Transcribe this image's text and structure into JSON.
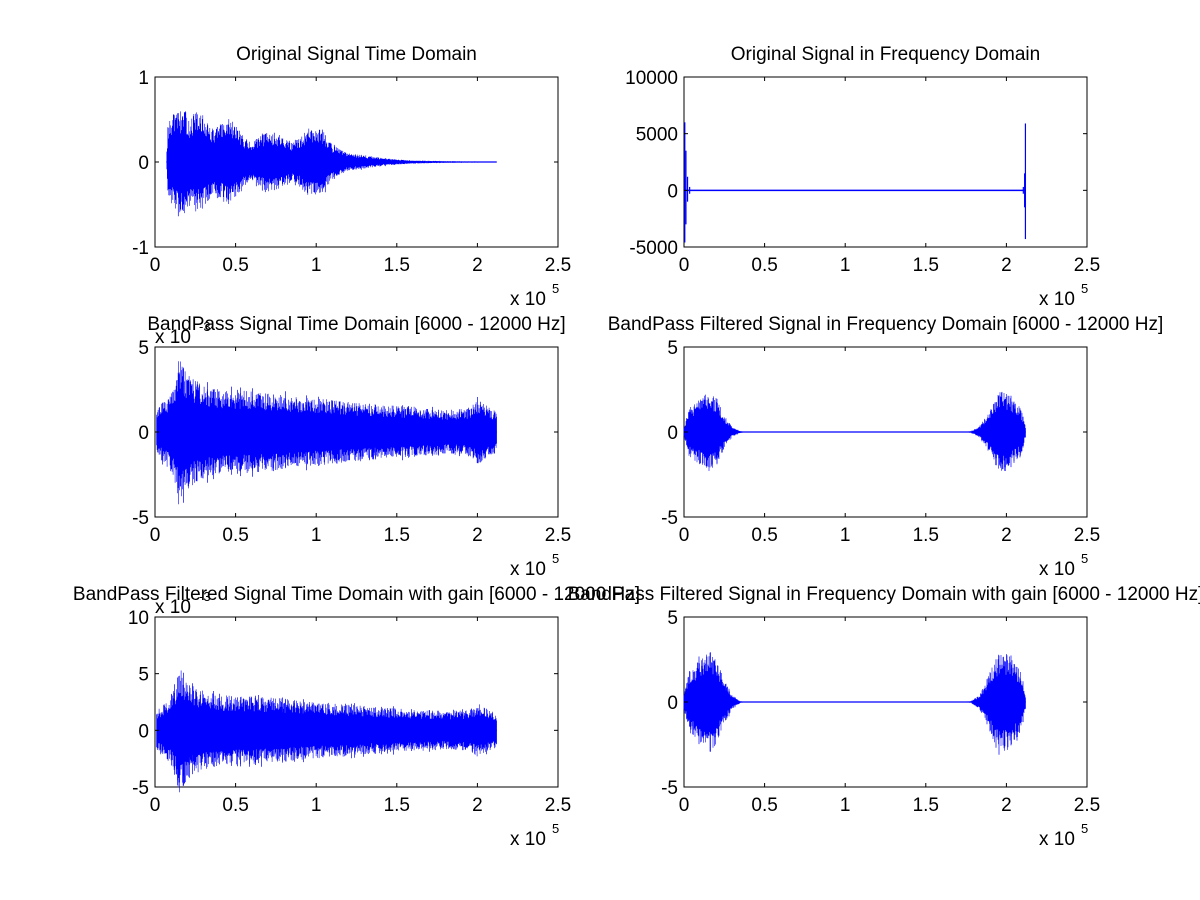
{
  "figure": {
    "background": "#ffffff",
    "line_color": "#0000ff"
  },
  "chart_data": [
    {
      "id": "p1",
      "type": "line",
      "title": "Original Signal Time Domain",
      "xlim": [
        0,
        250000
      ],
      "ylim": [
        -1,
        1
      ],
      "x_ticks": [
        "0",
        "0.5",
        "1",
        "1.5",
        "2",
        "2.5"
      ],
      "y_ticks": [
        "-1",
        "0",
        "1"
      ],
      "x_multiplier": "x 10",
      "x_multiplier_exp": "5",
      "y_multiplier": "",
      "y_multiplier_exp": "",
      "signal": {
        "kind": "envelope",
        "x_start": 7000,
        "x_end": 212000,
        "envelope": [
          [
            7000,
            0.0
          ],
          [
            8000,
            0.45
          ],
          [
            12000,
            0.58
          ],
          [
            18000,
            0.62
          ],
          [
            22000,
            0.5
          ],
          [
            25000,
            0.6
          ],
          [
            30000,
            0.55
          ],
          [
            35000,
            0.4
          ],
          [
            40000,
            0.42
          ],
          [
            45000,
            0.52
          ],
          [
            50000,
            0.45
          ],
          [
            55000,
            0.3
          ],
          [
            60000,
            0.22
          ],
          [
            65000,
            0.3
          ],
          [
            70000,
            0.36
          ],
          [
            80000,
            0.3
          ],
          [
            85000,
            0.22
          ],
          [
            90000,
            0.3
          ],
          [
            95000,
            0.4
          ],
          [
            100000,
            0.43
          ],
          [
            105000,
            0.35
          ],
          [
            110000,
            0.2
          ],
          [
            115000,
            0.15
          ],
          [
            120000,
            0.1
          ],
          [
            130000,
            0.08
          ],
          [
            140000,
            0.05
          ],
          [
            150000,
            0.03
          ],
          [
            160000,
            0.02
          ],
          [
            180000,
            0.01
          ],
          [
            212000,
            0.005
          ]
        ]
      }
    },
    {
      "id": "p2",
      "type": "line",
      "title": "Original Signal in Frequency Domain",
      "xlim": [
        0,
        250000
      ],
      "ylim": [
        -5000,
        10000
      ],
      "x_ticks": [
        "0",
        "0.5",
        "1",
        "1.5",
        "2",
        "2.5"
      ],
      "y_ticks": [
        "-5000",
        "0",
        "5000",
        "10000"
      ],
      "x_multiplier": "x 10",
      "x_multiplier_exp": "5",
      "y_multiplier": "",
      "y_multiplier_exp": "",
      "signal": {
        "kind": "spikes",
        "x_start": 0,
        "x_end": 212000,
        "spikes": [
          [
            500,
            6000,
            -4600
          ],
          [
            1200,
            3500,
            -3000
          ],
          [
            2200,
            1200,
            -1000
          ],
          [
            3500,
            300,
            -300
          ],
          [
            210500,
            300,
            -300
          ],
          [
            211300,
            1500,
            -1500
          ],
          [
            211800,
            5900,
            -4300
          ]
        ]
      }
    },
    {
      "id": "p3",
      "type": "line",
      "title": "BandPass Signal Time Domain [6000 - 12000 Hz]",
      "xlim": [
        0,
        250000
      ],
      "ylim": [
        -5,
        5
      ],
      "x_ticks": [
        "0",
        "0.5",
        "1",
        "1.5",
        "2",
        "2.5"
      ],
      "y_ticks": [
        "-5",
        "0",
        "5"
      ],
      "x_multiplier": "x 10",
      "x_multiplier_exp": "5",
      "y_multiplier": "x 10",
      "y_multiplier_exp": "-3",
      "signal": {
        "kind": "envelope",
        "x_start": 1000,
        "x_end": 212000,
        "envelope": [
          [
            1000,
            1.4
          ],
          [
            5000,
            1.8
          ],
          [
            9000,
            2.2
          ],
          [
            13000,
            3.2
          ],
          [
            15000,
            4.6
          ],
          [
            18000,
            3.8
          ],
          [
            22000,
            3.2
          ],
          [
            30000,
            2.8
          ],
          [
            40000,
            2.5
          ],
          [
            60000,
            2.4
          ],
          [
            80000,
            2.2
          ],
          [
            100000,
            2.0
          ],
          [
            120000,
            1.8
          ],
          [
            140000,
            1.6
          ],
          [
            160000,
            1.5
          ],
          [
            180000,
            1.3
          ],
          [
            195000,
            1.4
          ],
          [
            200000,
            1.9
          ],
          [
            205000,
            1.6
          ],
          [
            212000,
            1.2
          ]
        ]
      }
    },
    {
      "id": "p4",
      "type": "line",
      "title": "BandPass Filtered Signal in Frequency Domain [6000 - 12000 Hz]",
      "xlim": [
        0,
        250000
      ],
      "ylim": [
        -5,
        5
      ],
      "x_ticks": [
        "0",
        "0.5",
        "1",
        "1.5",
        "2",
        "2.5"
      ],
      "y_ticks": [
        "-5",
        "0",
        "5"
      ],
      "x_multiplier": "x 10",
      "x_multiplier_exp": "5",
      "y_multiplier": "",
      "y_multiplier_exp": "",
      "signal": {
        "kind": "envelope",
        "x_start": 0,
        "x_end": 212000,
        "envelope": [
          [
            0,
            0.3
          ],
          [
            3000,
            1.4
          ],
          [
            8000,
            1.8
          ],
          [
            12000,
            2.2
          ],
          [
            16000,
            2.4
          ],
          [
            20000,
            2.0
          ],
          [
            25000,
            1.0
          ],
          [
            30000,
            0.3
          ],
          [
            35000,
            0.05
          ],
          [
            40000,
            0.0
          ],
          [
            172000,
            0.0
          ],
          [
            178000,
            0.05
          ],
          [
            183000,
            0.3
          ],
          [
            188000,
            1.0
          ],
          [
            193000,
            2.0
          ],
          [
            197000,
            2.5
          ],
          [
            201000,
            2.2
          ],
          [
            205000,
            1.8
          ],
          [
            209000,
            1.4
          ],
          [
            212000,
            0.3
          ]
        ]
      }
    },
    {
      "id": "p5",
      "type": "line",
      "title": "BandPass Filtered Signal Time Domain with gain [6000 - 12000 Hz]",
      "xlim": [
        0,
        250000
      ],
      "ylim": [
        -5,
        10
      ],
      "x_ticks": [
        "0",
        "0.5",
        "1",
        "1.5",
        "2",
        "2.5"
      ],
      "y_ticks": [
        "-5",
        "0",
        "5",
        "10"
      ],
      "x_multiplier": "x 10",
      "x_multiplier_exp": "5",
      "y_multiplier": "x 10",
      "y_multiplier_exp": "-3",
      "signal": {
        "kind": "envelope",
        "x_start": 1000,
        "x_end": 212000,
        "envelope": [
          [
            1000,
            1.8
          ],
          [
            5000,
            2.3
          ],
          [
            9000,
            2.8
          ],
          [
            13000,
            4.0
          ],
          [
            15000,
            5.7
          ],
          [
            18000,
            4.8
          ],
          [
            22000,
            4.0
          ],
          [
            30000,
            3.5
          ],
          [
            40000,
            3.1
          ],
          [
            60000,
            3.0
          ],
          [
            80000,
            2.8
          ],
          [
            100000,
            2.5
          ],
          [
            120000,
            2.3
          ],
          [
            140000,
            2.0
          ],
          [
            160000,
            1.9
          ],
          [
            180000,
            1.7
          ],
          [
            195000,
            1.8
          ],
          [
            200000,
            2.4
          ],
          [
            205000,
            2.0
          ],
          [
            212000,
            1.5
          ]
        ]
      }
    },
    {
      "id": "p6",
      "type": "line",
      "title": "BandPass Filtered Signal in Frequency Domain with gain [6000 - 12000 Hz]",
      "xlim": [
        0,
        250000
      ],
      "ylim": [
        -5,
        5
      ],
      "x_ticks": [
        "0",
        "0.5",
        "1",
        "1.5",
        "2",
        "2.5"
      ],
      "y_ticks": [
        "-5",
        "0",
        "5"
      ],
      "x_multiplier": "x 10",
      "x_multiplier_exp": "5",
      "y_multiplier": "",
      "y_multiplier_exp": "",
      "signal": {
        "kind": "envelope",
        "x_start": 0,
        "x_end": 212000,
        "envelope": [
          [
            0,
            0.4
          ],
          [
            3000,
            1.8
          ],
          [
            8000,
            2.3
          ],
          [
            12000,
            2.8
          ],
          [
            16000,
            3.1
          ],
          [
            20000,
            2.5
          ],
          [
            25000,
            1.3
          ],
          [
            30000,
            0.4
          ],
          [
            35000,
            0.05
          ],
          [
            40000,
            0.0
          ],
          [
            172000,
            0.0
          ],
          [
            178000,
            0.05
          ],
          [
            183000,
            0.4
          ],
          [
            188000,
            1.3
          ],
          [
            193000,
            2.5
          ],
          [
            197000,
            3.1
          ],
          [
            201000,
            2.8
          ],
          [
            205000,
            2.3
          ],
          [
            209000,
            1.8
          ],
          [
            212000,
            0.4
          ]
        ]
      }
    }
  ]
}
